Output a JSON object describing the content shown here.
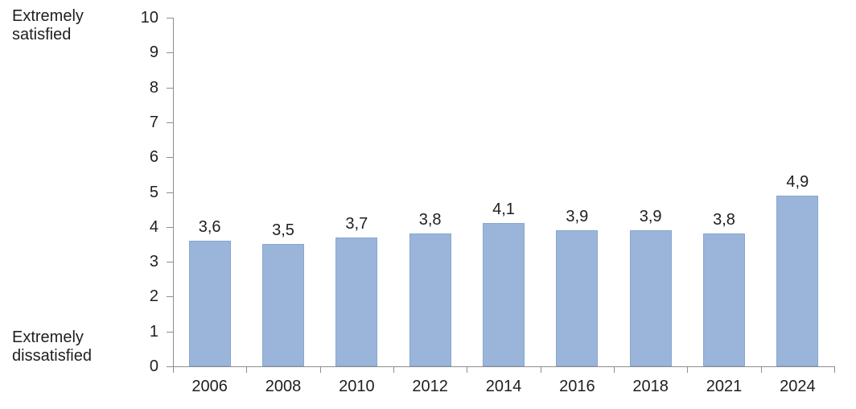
{
  "chart_data": {
    "type": "bar",
    "categories": [
      "2006",
      "2008",
      "2010",
      "2012",
      "2014",
      "2016",
      "2018",
      "2021",
      "2024"
    ],
    "values": [
      3.6,
      3.5,
      3.7,
      3.8,
      4.1,
      3.9,
      3.9,
      3.8,
      4.9
    ],
    "value_labels": [
      "3,6",
      "3,5",
      "3,7",
      "3,8",
      "4,1",
      "3,9",
      "3,9",
      "3,8",
      "4,9"
    ],
    "title": "",
    "xlabel": "",
    "ylabel": "",
    "ylim": [
      0,
      10
    ],
    "ytick_step": 1,
    "ytick_labels": [
      "0",
      "1",
      "2",
      "3",
      "4",
      "5",
      "6",
      "7",
      "8",
      "9",
      "10"
    ],
    "y_axis_top_label": "Extremely satisfied",
    "y_axis_bottom_label": "Extremely dissatisfied",
    "grid": "off",
    "legend": "none",
    "data_labels": "above-bars",
    "colors": {
      "bar_fill": "#9ab5d9",
      "bar_border": "#86a7cf",
      "axis_line": "#8e8e8e",
      "text": "#1f1f1f",
      "background": "#ffffff"
    }
  }
}
